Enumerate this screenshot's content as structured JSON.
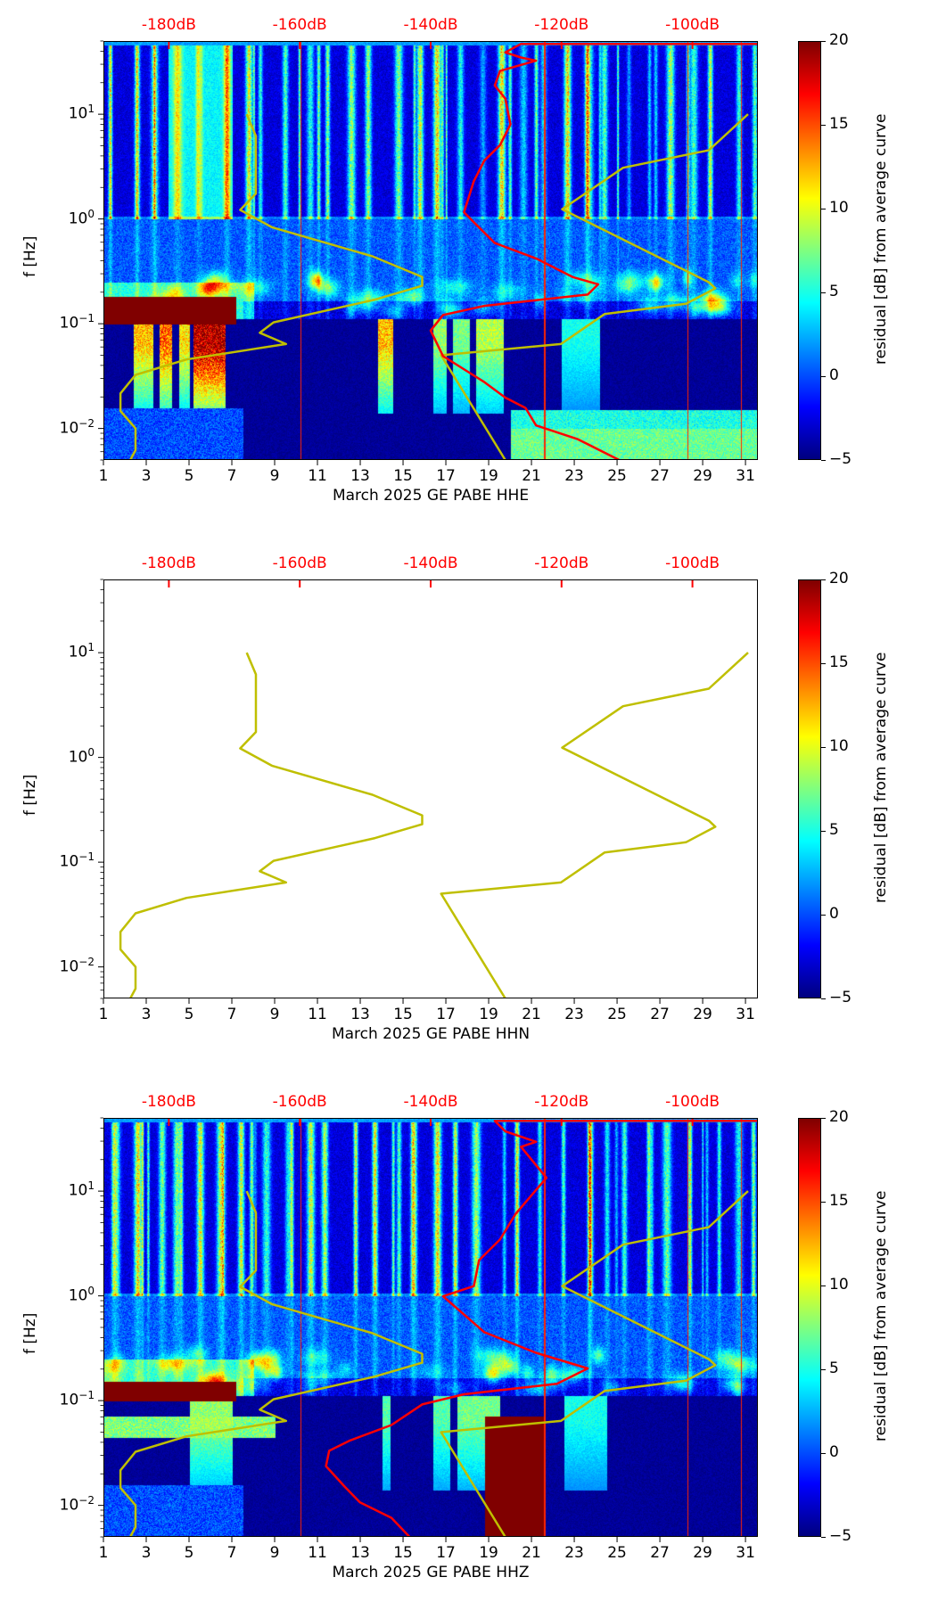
{
  "chart_data": [
    {
      "type": "heatmap",
      "panel": "HHE",
      "xlabel": "March 2025 GE PABE  HHE",
      "ylabel": "f [Hz]",
      "has_spectrogram": true,
      "red_curve": [
        [
          -89.9,
          47
        ],
        [
          -126.2,
          47
        ],
        [
          -128.6,
          38.9
        ],
        [
          -126.2,
          34.8
        ],
        [
          -123.9,
          32.4
        ],
        [
          -126.2,
          29.6
        ],
        [
          -129.4,
          25.9
        ],
        [
          -130.2,
          18.8
        ],
        [
          -128.6,
          14.1
        ],
        [
          -127.8,
          8.0
        ],
        [
          -129.4,
          5.07
        ],
        [
          -131.8,
          3.61
        ],
        [
          -133.4,
          2.29
        ],
        [
          -134.9,
          1.16
        ],
        [
          -133.4,
          0.93
        ],
        [
          -130.2,
          0.59
        ],
        [
          -123.9,
          0.42
        ],
        [
          -118.3,
          0.279
        ],
        [
          -114.4,
          0.238
        ],
        [
          -116.0,
          0.19
        ],
        [
          -131.8,
          0.148
        ],
        [
          -138.1,
          0.121
        ],
        [
          -140.0,
          0.086
        ],
        [
          -138.1,
          0.049
        ],
        [
          -131.8,
          0.0277
        ],
        [
          -128.6,
          0.0197
        ],
        [
          -125.5,
          0.0157
        ],
        [
          -123.9,
          0.0107
        ],
        [
          -117.5,
          0.0079
        ],
        [
          -111.2,
          0.005
        ]
      ]
    },
    {
      "type": "heatmap",
      "panel": "HHN",
      "xlabel": "March 2025 GE PABE  HHN",
      "ylabel": "f [Hz]",
      "has_spectrogram": false,
      "red_curve": []
    },
    {
      "type": "heatmap",
      "panel": "HHZ",
      "xlabel": "March 2025 GE PABE  HHZ",
      "ylabel": "f [Hz]",
      "has_spectrogram": true,
      "red_curve": [
        [
          -89.9,
          47
        ],
        [
          -130.2,
          47
        ],
        [
          -128.6,
          37.2
        ],
        [
          -123.9,
          29.6
        ],
        [
          -126.2,
          26.5
        ],
        [
          -122.3,
          13.4
        ],
        [
          -127.0,
          6.08
        ],
        [
          -129.4,
          3.45
        ],
        [
          -132.6,
          2.19
        ],
        [
          -133.4,
          1.24
        ],
        [
          -138.1,
          0.99
        ],
        [
          -131.8,
          0.45
        ],
        [
          -123.9,
          0.286
        ],
        [
          -116.0,
          0.203
        ],
        [
          -120.7,
          0.145
        ],
        [
          -134.9,
          0.115
        ],
        [
          -141.3,
          0.092
        ],
        [
          -146.0,
          0.0585
        ],
        [
          -152.3,
          0.0417
        ],
        [
          -155.5,
          0.0332
        ],
        [
          -156.0,
          0.0237
        ],
        [
          -153.1,
          0.015
        ],
        [
          -150.8,
          0.0107
        ],
        [
          -146.0,
          0.0076
        ],
        [
          -142.8,
          0.0047
        ]
      ]
    }
  ],
  "axes": {
    "x_range_days": [
      1,
      31.58
    ],
    "x_ticks": [
      "1",
      "3",
      "5",
      "7",
      "9",
      "11",
      "13",
      "15",
      "17",
      "19",
      "21",
      "23",
      "25",
      "27",
      "29",
      "31"
    ],
    "y_range_hz": [
      0.005,
      50
    ],
    "y_ticks": [
      {
        "base": "10",
        "exp": "1",
        "value": 10
      },
      {
        "base": "10",
        "exp": "0",
        "value": 1
      },
      {
        "base": "10",
        "exp": "−1",
        "value": 0.1
      },
      {
        "base": "10",
        "exp": "−2",
        "value": 0.01
      }
    ],
    "top_range_db": [
      -190,
      -90
    ],
    "top_ticks": [
      {
        "label": "-180dB",
        "value": -180
      },
      {
        "label": "-160dB",
        "value": -160
      },
      {
        "label": "-140dB",
        "value": -140
      },
      {
        "label": "-120dB",
        "value": -120
      },
      {
        "label": "-100dB",
        "value": -100
      }
    ]
  },
  "noise_models": {
    "low": [
      [
        -168.1,
        10
      ],
      [
        -166.7,
        6.2
      ],
      [
        -166.7,
        1.75
      ],
      [
        -169.1,
        1.22
      ],
      [
        -164.2,
        0.83
      ],
      [
        -148.9,
        0.44
      ],
      [
        -141.3,
        0.28
      ],
      [
        -141.3,
        0.23
      ],
      [
        -148.5,
        0.17
      ],
      [
        -164.0,
        0.103
      ],
      [
        -166.1,
        0.082
      ],
      [
        -162.1,
        0.064
      ],
      [
        -177.3,
        0.0456
      ],
      [
        -185.1,
        0.0325
      ],
      [
        -187.4,
        0.0216
      ],
      [
        -187.4,
        0.0147
      ],
      [
        -185.1,
        0.01
      ],
      [
        -185.1,
        0.0062
      ],
      [
        -185.9,
        0.005
      ]
    ],
    "high": [
      [
        -91.5,
        10
      ],
      [
        -97.5,
        4.53
      ],
      [
        -110.6,
        3.08
      ],
      [
        -119.9,
        1.24
      ],
      [
        -97.5,
        0.249
      ],
      [
        -96.5,
        0.218
      ],
      [
        -101.0,
        0.155
      ],
      [
        -113.4,
        0.124
      ],
      [
        -120.1,
        0.064
      ],
      [
        -138.4,
        0.05
      ],
      [
        -128.6,
        0.005
      ]
    ]
  },
  "colorbar": {
    "label": "residual [dB] from average curve",
    "range": [
      -5,
      20
    ],
    "ticks": [
      "20",
      "15",
      "10",
      "5",
      "0",
      "−5"
    ]
  },
  "colors": {
    "model_curve": "#bfbf00",
    "median_curve": "#ff0000",
    "top_labels": "#ff0000"
  }
}
